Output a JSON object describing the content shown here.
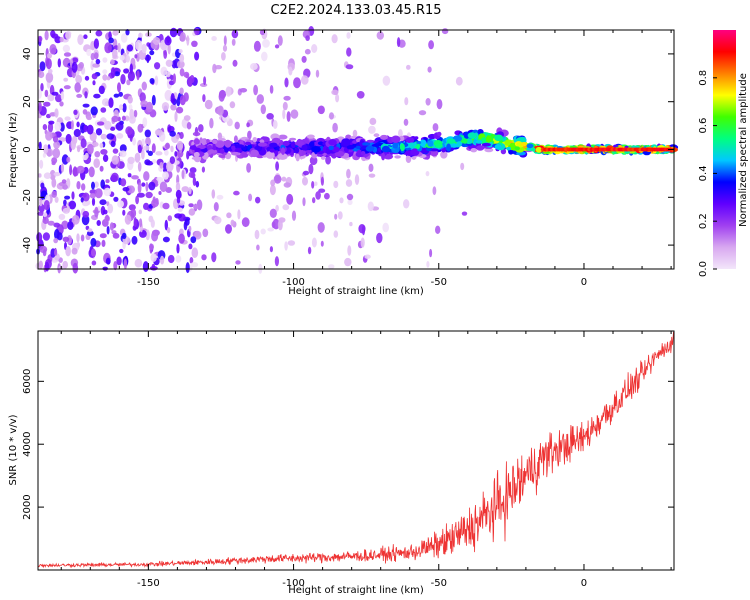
{
  "chart_data": [
    {
      "type": "heatmap",
      "title": "C2E2.2024.133.03.45.R15",
      "xlabel": "Height of straight line (km)",
      "ylabel": "Frequency (Hz)",
      "xlim": [
        -188,
        31
      ],
      "ylim": [
        -50,
        50
      ],
      "xticks": [
        -150,
        -100,
        -50,
        0
      ],
      "yticks": [
        40,
        20,
        0,
        -20,
        -40
      ],
      "colorbar": {
        "label": "Normalized spectral amplitude",
        "range": [
          0.0,
          1.0
        ],
        "ticks": [
          "0.0",
          "0.2",
          "0.4",
          "0.6",
          "0.8"
        ],
        "colors": [
          "#f3e6fa",
          "#d8a8f0",
          "#a040f0",
          "#6000ff",
          "#0000ff",
          "#00c8ff",
          "#00ff80",
          "#40ff00",
          "#ffff00",
          "#ff8000",
          "#ff0000",
          "#ff0080"
        ]
      },
      "ridge": {
        "description": "main spectral line",
        "x": [
          -135,
          -120,
          -100,
          -80,
          -60,
          -45,
          -35,
          -28,
          -20,
          -14,
          0,
          15,
          31
        ],
        "freq": [
          0,
          1,
          1,
          1,
          1,
          3,
          5,
          3,
          1,
          0,
          0,
          0,
          0
        ],
        "amplitude": [
          0.25,
          0.3,
          0.35,
          0.4,
          0.5,
          0.6,
          0.65,
          0.75,
          0.85,
          0.9,
          0.9,
          0.9,
          0.9
        ]
      }
    },
    {
      "type": "line",
      "xlabel": "Height of straight line (km)",
      "ylabel": "SNR (10 * v/v)",
      "xlim": [
        -188,
        31
      ],
      "ylim": [
        0,
        7600
      ],
      "xticks": [
        -150,
        -100,
        -50,
        0
      ],
      "yticks": [
        2000,
        4000,
        6000
      ],
      "color": "#ee3333",
      "x": [
        -188,
        -170,
        -150,
        -130,
        -110,
        -90,
        -75,
        -60,
        -52,
        -45,
        -38,
        -30,
        -25,
        -20,
        -15,
        -10,
        -5,
        0,
        5,
        10,
        15,
        20,
        25,
        31
      ],
      "y": [
        150,
        160,
        180,
        250,
        350,
        400,
        450,
        550,
        750,
        1000,
        1400,
        2000,
        2500,
        3000,
        3500,
        3800,
        4000,
        4200,
        4700,
        5200,
        5700,
        6200,
        6800,
        7300
      ],
      "spread": [
        80,
        90,
        100,
        150,
        200,
        250,
        300,
        400,
        600,
        900,
        1200,
        1500,
        1600,
        1400,
        1200,
        1000,
        900,
        800,
        800,
        800,
        700,
        600,
        500,
        400
      ]
    }
  ]
}
